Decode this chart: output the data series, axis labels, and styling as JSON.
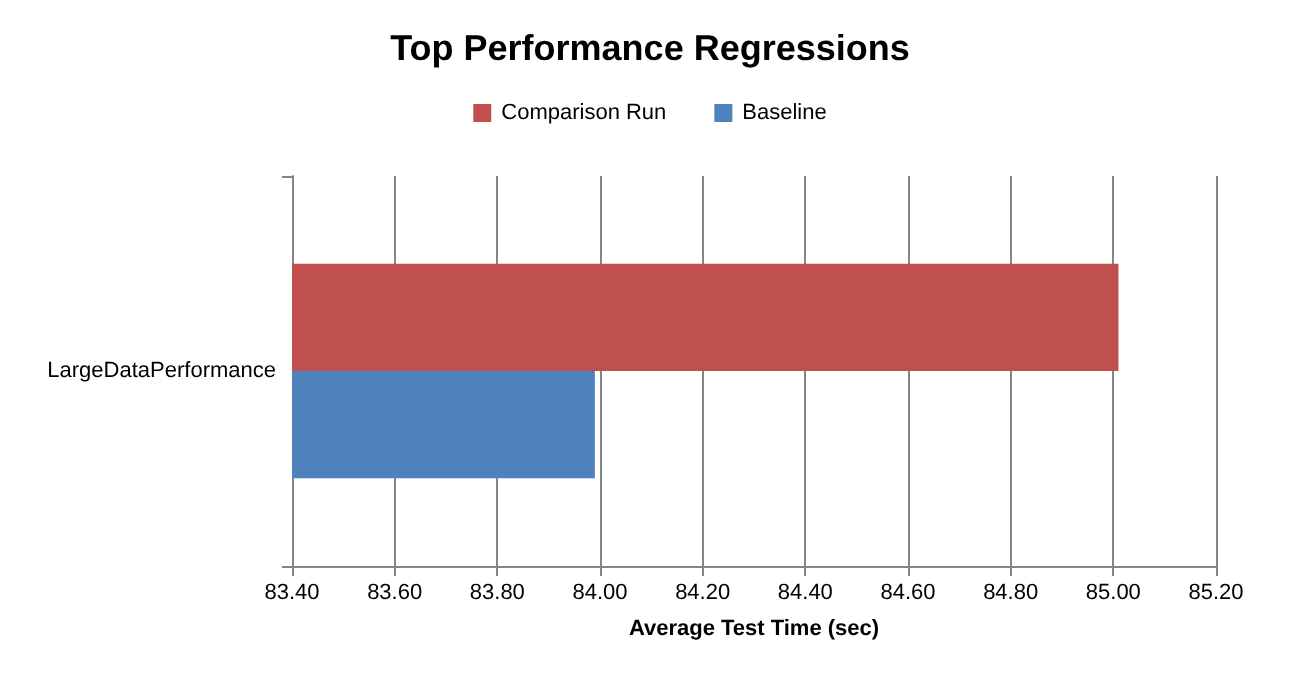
{
  "chart_data": {
    "type": "bar",
    "orientation": "horizontal",
    "title": "Top Performance Regressions",
    "xlabel": "Average Test Time (sec)",
    "categories": [
      "LargeDataPerformance"
    ],
    "series": [
      {
        "name": "Comparison Run",
        "color": "#c0504d",
        "values": [
          85.01
        ]
      },
      {
        "name": "Baseline",
        "color": "#4f81bd",
        "values": [
          83.99
        ]
      }
    ],
    "xlim": [
      83.4,
      85.2
    ],
    "xticks": [
      {
        "value": 83.4,
        "label": "83.40"
      },
      {
        "value": 83.6,
        "label": "83.60"
      },
      {
        "value": 83.8,
        "label": "83.80"
      },
      {
        "value": 84.0,
        "label": "84.00"
      },
      {
        "value": 84.2,
        "label": "84.20"
      },
      {
        "value": 84.4,
        "label": "84.40"
      },
      {
        "value": 84.6,
        "label": "84.60"
      },
      {
        "value": 84.8,
        "label": "84.80"
      },
      {
        "value": 85.0,
        "label": "85.00"
      },
      {
        "value": 85.2,
        "label": "85.20"
      }
    ],
    "grid": "x",
    "legend": "top"
  }
}
